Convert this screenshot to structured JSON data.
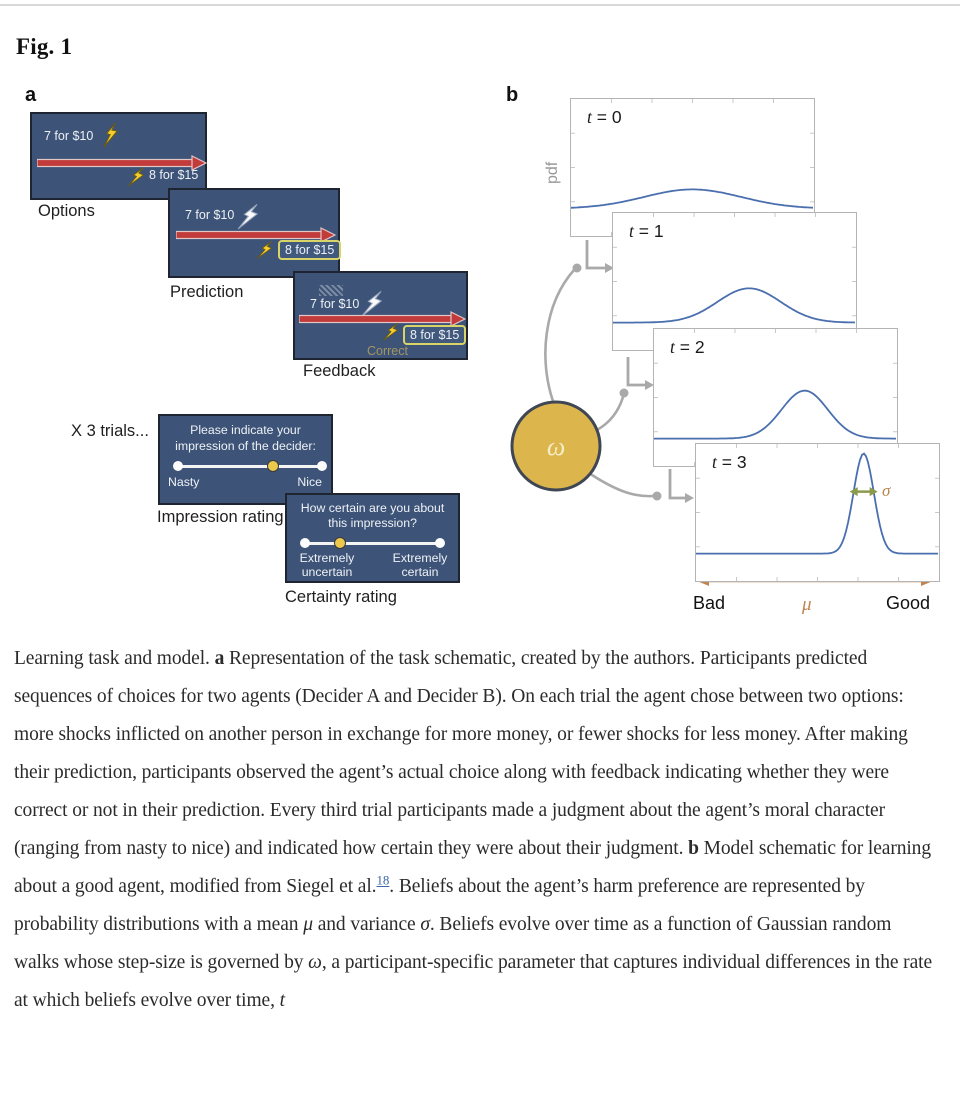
{
  "figure": {
    "title": "Fig. 1"
  },
  "icons": {
    "shock_icon": "lightning-bolt"
  },
  "colors": {
    "screen_navy": "#3d5478",
    "arrow_red": "#c23b3b",
    "bolt_yellow": "#f2cf2e",
    "bolt_white": "#fafafa",
    "chip_outline": "#d9d468",
    "correct_gold": "#a39560",
    "curve_blue": "#4a6fae",
    "omega_gold": "#dcb64d",
    "axis_tan": "#c08552",
    "sigma_olive": "#8b9a4b",
    "connector_gray": "#a9a9a9"
  },
  "panel_a": {
    "label": "a",
    "trials_note": "X 3 trials...",
    "screens": {
      "options": {
        "caption": "Options",
        "top": "7 for $10",
        "bottom": "8 for $15"
      },
      "prediction": {
        "caption": "Prediction",
        "top": "7 for $10",
        "bottom": "8 for $15"
      },
      "feedback": {
        "caption": "Feedback",
        "top": "7 for $10",
        "bottom": "8 for $15",
        "result": "Correct"
      }
    },
    "impression": {
      "caption": "Impression rating",
      "prompt1": "Please indicate your",
      "prompt2": "impression of the decider:",
      "left_label": "Nasty",
      "right_label": "Nice",
      "slider_pos": 0.66
    },
    "certainty": {
      "caption": "Certainty rating",
      "prompt1": "How certain are you about",
      "prompt2": "this impression?",
      "left_label1": "Extremely",
      "left_label2": "uncertain",
      "right_label1": "Extremely",
      "right_label2": "certain",
      "slider_pos": 0.26
    }
  },
  "panel_b": {
    "label": "b",
    "ylabel": "pdf",
    "omega": "ω",
    "sigma": "σ",
    "mu": "μ",
    "axis_left": "Bad",
    "axis_right": "Good",
    "plots": [
      {
        "var": "t",
        "eq": " = 0"
      },
      {
        "var": "t",
        "eq": " = 1"
      },
      {
        "var": "t",
        "eq": " = 2"
      },
      {
        "var": "t",
        "eq": " = 3"
      }
    ]
  },
  "chart_data": {
    "type": "line",
    "description": "Four stacked pdf panels showing belief distributions narrowing and shifting toward Good over time t = 0..3",
    "ylabel": "pdf",
    "x_axis": {
      "left": "Bad",
      "right": "Good",
      "mean_symbol": "μ",
      "range": [
        0,
        1
      ]
    },
    "grid": false,
    "line_color": "#4a6fae",
    "series": [
      {
        "name": "t = 0",
        "shape": "gaussian",
        "mean": 0.5,
        "sd": 0.2,
        "peak_height": 0.14
      },
      {
        "name": "t = 1",
        "shape": "gaussian",
        "mean": 0.56,
        "sd": 0.13,
        "peak_height": 0.25
      },
      {
        "name": "t = 2",
        "shape": "gaussian",
        "mean": 0.62,
        "sd": 0.095,
        "peak_height": 0.35
      },
      {
        "name": "t = 3",
        "shape": "gaussian",
        "mean": 0.69,
        "sd": 0.042,
        "peak_height": 0.73,
        "sigma_marker": true
      }
    ]
  },
  "caption": {
    "segments": [
      {
        "s": "n",
        "t": "Learning task and model. "
      },
      {
        "s": "b",
        "t": "a"
      },
      {
        "s": "n",
        "t": " Representation of the task schematic, created by the authors. Participants predicted sequences of choices for two agents (Decider A and Decider B). On each trial the agent chose between two options: more shocks inflicted on another person in exchange for more money, or fewer shocks for less money. After making their prediction, participants observed the agent’s actual choice along with feedback indicating whether they were correct or not in their prediction. Every third trial participants made a judgment about the agent’s moral character (ranging from nasty to nice) and indicated how certain they were about their judgment. "
      },
      {
        "s": "b",
        "t": "b"
      },
      {
        "s": "n",
        "t": " Model schematic for learning about a good agent, modified from Siegel et al."
      },
      {
        "s": "sup",
        "t": "18"
      },
      {
        "s": "n",
        "t": ". Beliefs about the agent’s harm preference are represented by probability distributions with a mean "
      },
      {
        "s": "i",
        "t": "μ"
      },
      {
        "s": "n",
        "t": " and variance "
      },
      {
        "s": "i",
        "t": "σ"
      },
      {
        "s": "n",
        "t": ". Beliefs evolve over time as a function of Gaussian random walks whose step-size is governed by "
      },
      {
        "s": "i",
        "t": "ω"
      },
      {
        "s": "n",
        "t": ", a participant-specific parameter that captures individual differences in the rate at which beliefs evolve over time, "
      },
      {
        "s": "i",
        "t": "t"
      }
    ]
  }
}
